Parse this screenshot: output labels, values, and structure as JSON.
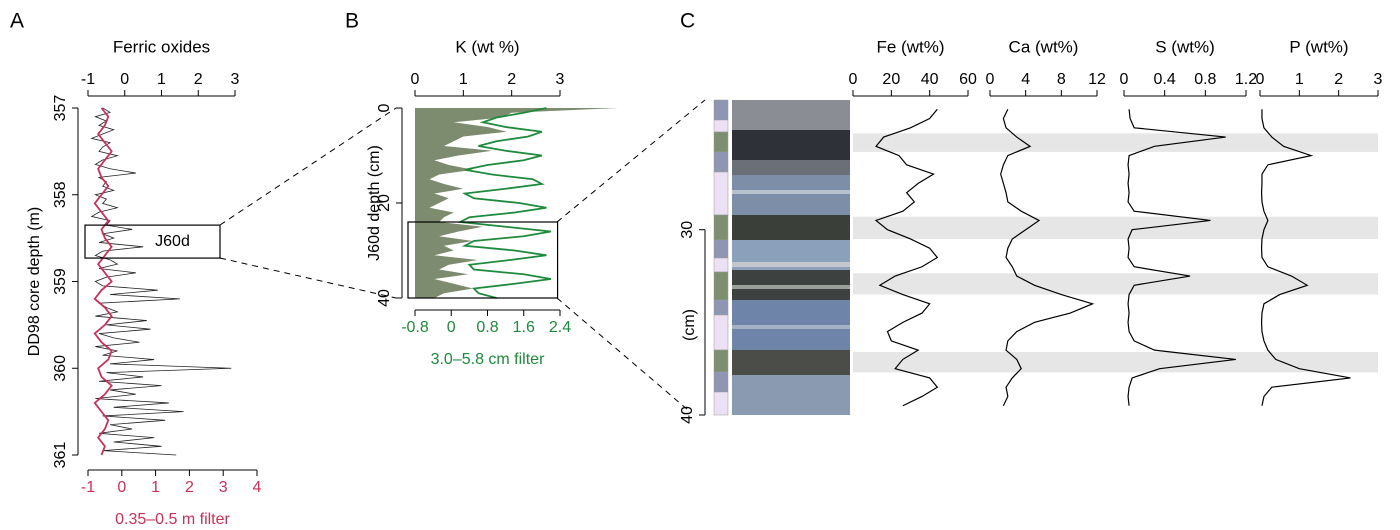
{
  "chart_data": [
    {
      "type": "line",
      "panel": "A",
      "title": "Ferric oxides",
      "ylabel": "DD98 core depth (m)",
      "x2label": "0.35–0.5 m filter",
      "ylim": [
        357,
        361
      ],
      "yticks": [
        357,
        358,
        359,
        360,
        361
      ],
      "y_inverted": true,
      "xlim": [
        -1,
        3
      ],
      "xticks": [
        -1,
        0,
        1,
        2,
        3
      ],
      "x2lim": [
        -1,
        4
      ],
      "x2ticks": [
        -1,
        0,
        1,
        2,
        3,
        4
      ],
      "box": {
        "text": "J60d",
        "ylim": [
          358.35,
          358.73
        ]
      },
      "series": [
        {
          "color": "#222222",
          "x": [
            357,
            357.05,
            357.1,
            357.15,
            357.2,
            357.25,
            357.3,
            357.35,
            357.4,
            357.45,
            357.5,
            357.55,
            357.6,
            357.65,
            357.7,
            357.75,
            357.8,
            357.85,
            357.9,
            357.95,
            358,
            358.05,
            358.1,
            358.15,
            358.2,
            358.25,
            358.3,
            358.35,
            358.4,
            358.45,
            358.5,
            358.55,
            358.6,
            358.65,
            358.7,
            358.75,
            358.8,
            358.85,
            358.9,
            358.95,
            359,
            359.05,
            359.1,
            359.15,
            359.2,
            359.25,
            359.3,
            359.35,
            359.4,
            359.45,
            359.5,
            359.55,
            359.6,
            359.65,
            359.7,
            359.75,
            359.8,
            359.85,
            359.9,
            359.95,
            360,
            360.05,
            360.1,
            360.15,
            360.2,
            360.25,
            360.3,
            360.35,
            360.4,
            360.45,
            360.5,
            360.55,
            360.6,
            360.65,
            360.7,
            360.75,
            360.8,
            360.85,
            360.9,
            360.95,
            361
          ],
          "values": [
            -0.6,
            -0.4,
            -0.8,
            -0.5,
            -0.7,
            -0.3,
            -0.6,
            -0.9,
            -0.4,
            -0.6,
            -0.7,
            -0.2,
            -0.6,
            -0.8,
            -0.4,
            0.3,
            -0.7,
            -0.5,
            -0.6,
            -0.3,
            -0.8,
            -0.5,
            -0.6,
            -0.2,
            -0.7,
            -0.9,
            -0.4,
            -0.5,
            0.2,
            -0.6,
            -0.3,
            -0.7,
            0.5,
            -0.6,
            -0.8,
            -0.4,
            -0.2,
            -0.7,
            0.3,
            -0.5,
            -0.8,
            -0.6,
            0.9,
            -0.4,
            1.5,
            -0.7,
            -0.5,
            -0.2,
            -0.8,
            0.6,
            -0.5,
            0.7,
            -0.7,
            -0.3,
            0.4,
            -0.8,
            -0.2,
            -0.6,
            0.8,
            -0.4,
            2.9,
            -0.5,
            0.5,
            -0.7,
            1.0,
            -0.4,
            0.3,
            -0.8,
            1.2,
            -0.3,
            1.6,
            -0.6,
            1.1,
            -0.4,
            0.2,
            -0.7,
            0.8,
            -0.3,
            1.0,
            -0.6,
            1.4
          ]
        },
        {
          "color": "#c8325a",
          "axis": "x2",
          "x": [
            357,
            357.1,
            357.2,
            357.3,
            357.4,
            357.5,
            357.6,
            357.7,
            357.8,
            357.9,
            358,
            358.1,
            358.2,
            358.3,
            358.4,
            358.5,
            358.6,
            358.7,
            358.8,
            358.9,
            359,
            359.1,
            359.2,
            359.3,
            359.4,
            359.5,
            359.6,
            359.7,
            359.8,
            359.9,
            360,
            360.1,
            360.2,
            360.3,
            360.4,
            360.5,
            360.6,
            360.7,
            360.8,
            360.9,
            361
          ],
          "values": [
            -0.6,
            -0.4,
            -0.5,
            -0.7,
            -0.5,
            -0.3,
            -0.5,
            -0.7,
            -0.6,
            -0.4,
            -0.6,
            -0.8,
            -0.6,
            -0.4,
            -0.6,
            -0.5,
            -0.3,
            -0.5,
            -0.7,
            -0.5,
            -0.3,
            -0.6,
            -0.8,
            -0.5,
            -0.3,
            -0.5,
            -0.8,
            -0.6,
            -0.3,
            -0.4,
            -0.7,
            -0.6,
            -0.3,
            -0.5,
            -0.8,
            -0.6,
            -0.4,
            -0.5,
            -0.7,
            -0.5,
            -0.6
          ]
        }
      ]
    },
    {
      "type": "line",
      "panel": "B",
      "title": "K (wt %)",
      "ylabel": "J60d depth (cm)",
      "x2label": "3.0–5.8 cm filter",
      "ylim": [
        0,
        40
      ],
      "yticks": [
        0,
        20,
        40
      ],
      "y_inverted": true,
      "xlim": [
        0,
        3
      ],
      "xticks": [
        0,
        1,
        2,
        3
      ],
      "x2lim": [
        -0.8,
        2.4
      ],
      "x2ticks": [
        -0.8,
        0,
        0.8,
        1.6,
        2.4
      ],
      "box": {
        "ylim": [
          24,
          40
        ],
        "xlim": [
          0,
          2.95
        ]
      },
      "x": [
        0,
        1,
        2,
        3,
        4,
        5,
        6,
        7,
        8,
        9,
        10,
        11,
        12,
        13,
        14,
        15,
        16,
        17,
        18,
        19,
        20,
        21,
        22,
        23,
        24,
        25,
        26,
        27,
        28,
        29,
        30,
        31,
        32,
        33,
        34,
        35,
        36,
        37,
        38,
        39,
        40
      ],
      "series": [
        {
          "type": "area",
          "color": "#7d8b6e",
          "values": [
            4.2,
            2,
            1.8,
            0.8,
            1.5,
            1.9,
            1,
            0.8,
            0.6,
            1.6,
            0.9,
            0.4,
            0.7,
            1.2,
            0.5,
            0.3,
            0.6,
            1,
            0.4,
            0.7,
            0.5,
            0.3,
            0.8,
            0.6,
            0.5,
            1.4,
            0.9,
            0.5,
            1.2,
            0.6,
            0.8,
            0.4,
            1.3,
            0.7,
            0.5,
            1.1,
            0.4,
            0.8,
            1.2,
            0.6,
            0.4
          ]
        },
        {
          "type": "line",
          "color": "#1e8a3c",
          "axis": "x2",
          "values": [
            2.1,
            1.6,
            1.0,
            0.7,
            1.2,
            2.0,
            1.7,
            1.0,
            0.6,
            1.2,
            2.0,
            1.6,
            0.8,
            0.3,
            0.9,
            1.8,
            2.0,
            1.2,
            0.3,
            0.5,
            1.5,
            2.1,
            1.4,
            0.4,
            0.2,
            1.2,
            2.2,
            1.6,
            0.5,
            0.3,
            1.4,
            2.1,
            1.3,
            0.4,
            0.5,
            1.6,
            2.2,
            1.4,
            0.5,
            0.6,
            1.0
          ]
        }
      ]
    },
    {
      "type": "line",
      "panel": "C",
      "ylabel": "(cm)",
      "ylim": [
        23,
        40
      ],
      "yticks": [
        30,
        40
      ],
      "y_inverted": true,
      "bands": [
        [
          24.8,
          25.8
        ],
        [
          29.3,
          30.5
        ],
        [
          32.35,
          33.5
        ],
        [
          36.6,
          37.7
        ]
      ],
      "x": [
        23.5,
        24,
        24.5,
        25,
        25.5,
        26,
        26.5,
        27,
        27.5,
        28,
        28.5,
        29,
        29.5,
        30,
        30.5,
        31,
        31.5,
        32,
        32.5,
        33,
        33.5,
        34,
        34.5,
        35,
        35.5,
        36,
        36.5,
        37,
        37.5,
        38,
        38.5,
        39,
        39.5
      ],
      "series": [
        {
          "name": "Fe (wt%)",
          "color": "#000000",
          "xlim": [
            0,
            60
          ],
          "xticks": [
            0,
            20,
            40,
            60
          ],
          "values": [
            44,
            40,
            30,
            16,
            12,
            24,
            28,
            42,
            34,
            28,
            32,
            26,
            12,
            18,
            30,
            40,
            44,
            36,
            22,
            14,
            26,
            40,
            36,
            26,
            18,
            20,
            34,
            26,
            22,
            40,
            44,
            36,
            26
          ]
        },
        {
          "name": "Ca (wt%)",
          "color": "#000000",
          "xlim": [
            0,
            12
          ],
          "xticks": [
            0,
            4,
            8,
            12
          ],
          "values": [
            2,
            1.5,
            1.8,
            3,
            4.5,
            2,
            1.5,
            1.2,
            1.5,
            1.8,
            2,
            3.5,
            5.5,
            4,
            2.5,
            2,
            1.8,
            2.5,
            3,
            5,
            8,
            11.5,
            9,
            5,
            3,
            2,
            1.8,
            3,
            3.5,
            2.5,
            1.8,
            2,
            1.5
          ]
        },
        {
          "name": "S (wt%)",
          "color": "#000000",
          "xlim": [
            0,
            1.2
          ],
          "xticks": [
            0,
            0.4,
            0.8,
            1.2
          ],
          "values": [
            0.05,
            0.06,
            0.1,
            1.0,
            0.3,
            0.05,
            0.04,
            0.05,
            0.04,
            0.05,
            0.04,
            0.1,
            0.85,
            0.08,
            0.04,
            0.05,
            0.04,
            0.1,
            0.65,
            0.1,
            0.05,
            0.04,
            0.05,
            0.04,
            0.05,
            0.1,
            0.3,
            1.1,
            0.35,
            0.08,
            0.05,
            0.04,
            0.05
          ]
        },
        {
          "name": "P (wt%)",
          "color": "#000000",
          "xlim": [
            0,
            3
          ],
          "xticks": [
            0,
            1,
            2,
            3
          ],
          "values": [
            0.05,
            0.05,
            0.1,
            0.3,
            0.6,
            1.3,
            0.2,
            0.05,
            0.05,
            0.04,
            0.05,
            0.1,
            0.2,
            0.1,
            0.05,
            0.04,
            0.05,
            0.2,
            0.8,
            1.2,
            0.5,
            0.1,
            0.05,
            0.04,
            0.05,
            0.1,
            0.2,
            0.4,
            1.0,
            2.3,
            0.3,
            0.1,
            0.05
          ]
        }
      ]
    }
  ]
}
